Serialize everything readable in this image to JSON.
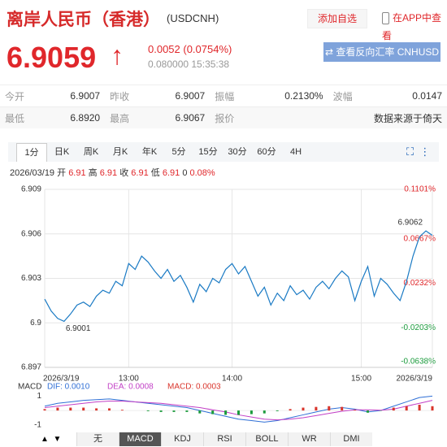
{
  "header": {
    "title": "离岸人民币（香港）",
    "code": "(USDCNH)",
    "add_button": "添加自选",
    "app_link": "在APP中查看"
  },
  "quote": {
    "price": "6.9059",
    "arrow": "↑",
    "change": "0.0052 (0.0754%)",
    "subline": "0.080000 15:35:38",
    "reverse_button": "⇄ 查看反向汇率 CNHUSD"
  },
  "stats": {
    "rows": [
      [
        "今开",
        "6.9007",
        "昨收",
        "6.9007",
        "振幅",
        "0.2130%",
        "波幅",
        "0.0147"
      ],
      [
        "最低",
        "6.8920",
        "最高",
        "6.9067",
        "报价",
        "",
        "数据来源于倚天",
        ""
      ]
    ]
  },
  "tabs": [
    "1分",
    "日K",
    "周K",
    "月K",
    "年K",
    "5分",
    "15分",
    "30分",
    "60分",
    "4H"
  ],
  "info": {
    "date": "2026/03/19",
    "items": [
      [
        "开",
        "6.91"
      ],
      [
        "高",
        "6.91"
      ],
      [
        "收",
        "6.91"
      ],
      [
        "低",
        "6.91"
      ]
    ],
    "volume": "0",
    "pct": "0.08%"
  },
  "indicator_tabs": [
    "无",
    "MACD",
    "KDJ",
    "RSI",
    "BOLL",
    "WR",
    "DMI"
  ],
  "chart_data": [
    {
      "type": "line",
      "color": "#1a7ac4",
      "categories": [
        "2026/3/19",
        null,
        null,
        null,
        null,
        null,
        null,
        null,
        null,
        null,
        null,
        null,
        null,
        "13:00",
        null,
        null,
        null,
        null,
        null,
        null,
        null,
        null,
        null,
        null,
        null,
        null,
        null,
        null,
        null,
        "14:00",
        null,
        null,
        null,
        null,
        null,
        null,
        null,
        null,
        null,
        null,
        null,
        null,
        null,
        null,
        null,
        null,
        null,
        null,
        null,
        "15:00",
        null,
        null,
        null,
        null,
        null,
        null,
        null,
        null,
        null,
        null,
        "2026/3/19"
      ],
      "values": [
        6.9016,
        6.9008,
        6.9003,
        6.9001,
        6.9006,
        6.9012,
        6.9014,
        6.9011,
        6.9018,
        6.9022,
        6.902,
        6.9028,
        6.9025,
        6.904,
        6.9036,
        6.9045,
        6.9041,
        6.9035,
        6.903,
        6.9036,
        6.9028,
        6.9032,
        6.9024,
        6.9014,
        6.9026,
        6.9021,
        6.903,
        6.9027,
        6.9036,
        6.904,
        6.9033,
        6.9038,
        6.9028,
        6.9018,
        6.9024,
        6.9012,
        6.902,
        6.9015,
        6.9025,
        6.9019,
        6.9022,
        6.9016,
        6.9024,
        6.9028,
        6.9023,
        6.903,
        6.9035,
        6.9031,
        6.9015,
        6.9028,
        6.9038,
        6.9018,
        6.903,
        6.9026,
        6.902,
        6.9015,
        6.9028,
        6.9045,
        6.9058,
        6.9062,
        6.9059
      ],
      "ylim": [
        6.897,
        6.909
      ],
      "yticks": [
        6.909,
        6.906,
        6.903,
        6.9,
        6.897
      ],
      "y2lim": [
        -0.0638,
        0.1101
      ],
      "y2ticks": [
        {
          "value": 0.1101,
          "label": "0.1101%"
        },
        {
          "value": 0.0667,
          "label": "0.0667%"
        },
        {
          "value": 0.0232,
          "label": "0.0232%"
        },
        {
          "value": -0.0203,
          "label": "-0.0203%"
        },
        {
          "value": -0.0638,
          "label": "-0.0638%"
        }
      ],
      "annotations": {
        "low": "6.9001",
        "high": "6.9062"
      },
      "grid": true
    },
    {
      "type": "macd",
      "title": "MACD",
      "ylim": [
        -1.4,
        1.3
      ],
      "yticks": [
        1,
        -1
      ],
      "series": [
        {
          "name": "DIF: 0.0010",
          "color": "#2f6fd6",
          "kind": "line",
          "values": [
            0.3,
            0.5,
            0.6,
            0.7,
            0.75,
            0.8,
            0.7,
            0.6,
            0.5,
            0.4,
            0.3,
            0.2,
            0,
            -0.2,
            -0.4,
            -0.6,
            -0.7,
            -0.8,
            -0.7,
            -0.5,
            -0.3,
            -0.1,
            0.1,
            0.2,
            0.1,
            -0.1,
            0,
            0.3,
            0.6,
            0.9,
            1.0
          ]
        },
        {
          "name": "DEA: 0.0008",
          "color": "#c23fc6",
          "kind": "line",
          "values": [
            0.2,
            0.3,
            0.4,
            0.5,
            0.6,
            0.65,
            0.65,
            0.6,
            0.55,
            0.5,
            0.4,
            0.3,
            0.2,
            0.05,
            -0.1,
            -0.3,
            -0.45,
            -0.6,
            -0.65,
            -0.6,
            -0.5,
            -0.35,
            -0.2,
            -0.05,
            0.05,
            0.05,
            0.02,
            0.1,
            0.3,
            0.5,
            0.7
          ]
        },
        {
          "name": "MACD: 0.0003",
          "color": "#d9342b",
          "kind": "bar",
          "values": [
            0.1,
            0.2,
            0.2,
            0.2,
            0.15,
            0.15,
            0.05,
            0,
            -0.05,
            -0.1,
            -0.1,
            -0.1,
            -0.2,
            -0.25,
            -0.3,
            -0.3,
            -0.25,
            -0.2,
            -0.05,
            0.1,
            0.2,
            0.25,
            0.3,
            0.25,
            0.05,
            -0.15,
            -0.02,
            0.2,
            0.3,
            0.4,
            0.3
          ]
        }
      ]
    }
  ]
}
